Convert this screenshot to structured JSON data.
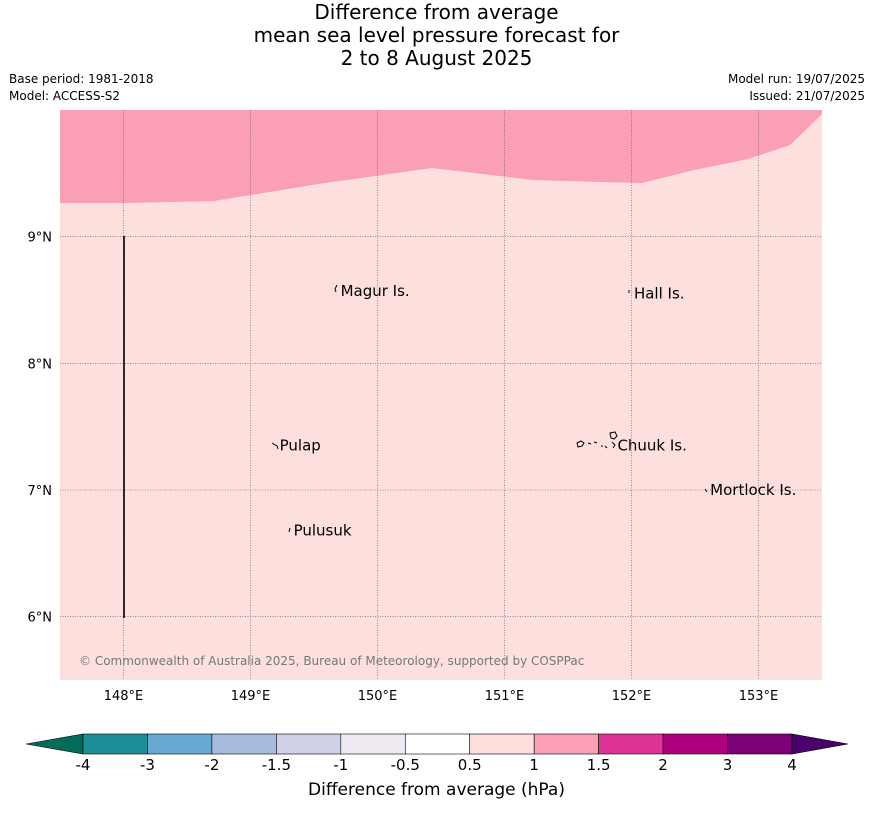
{
  "title": {
    "line1": "Difference from average",
    "line2": "mean sea level pressure forecast for",
    "line3": "2 to 8 August 2025"
  },
  "meta": {
    "base_period": "Base period: 1981-2018",
    "model": "Model: ACCESS-S2",
    "model_run": "Model run: 19/07/2025",
    "issued": "Issued: 21/07/2025"
  },
  "map": {
    "lon_range": [
      147.5,
      153.5
    ],
    "lat_range": [
      5.5,
      10.0
    ],
    "lon_ticks": [
      "148°E",
      "149°E",
      "150°E",
      "151°E",
      "152°E",
      "153°E"
    ],
    "lat_ticks": [
      "9°N",
      "8°N",
      "7°N",
      "6°N"
    ],
    "background_anomaly_range": "0.5 to 1",
    "north_band_anomaly_range": "1 to 1.5",
    "places": [
      {
        "name": "Magur Is.",
        "lon": 149.67,
        "lat": 8.57
      },
      {
        "name": "Hall Is.",
        "lon": 151.98,
        "lat": 8.55
      },
      {
        "name": "Pulap",
        "lon": 149.19,
        "lat": 7.35
      },
      {
        "name": "Chuuk Is.",
        "lon": 151.85,
        "lat": 7.35
      },
      {
        "name": "Mortlock Is.",
        "lon": 152.58,
        "lat": 7.0
      },
      {
        "name": "Pulusuk",
        "lon": 149.3,
        "lat": 6.68
      }
    ],
    "copyright": "© Commonwealth of Australia 2025, Bureau of Meteorology, supported by COSPPac"
  },
  "colorbar": {
    "title": "Difference from average (hPa)",
    "labels": [
      "-4",
      "-3",
      "-2",
      "-1.5",
      "-1",
      "-0.5",
      "0.5",
      "1",
      "1.5",
      "2",
      "3",
      "4"
    ],
    "colors": [
      "#1b8e97",
      "#67a9d1",
      "#a7bcdc",
      "#cfd1e8",
      "#efeaf2",
      "#ffffff",
      "#fde0dd",
      "#fa9fb5",
      "#dd3497",
      "#ae017e",
      "#7a0177"
    ],
    "under_color": "#016c59",
    "over_color": "#49006a"
  }
}
